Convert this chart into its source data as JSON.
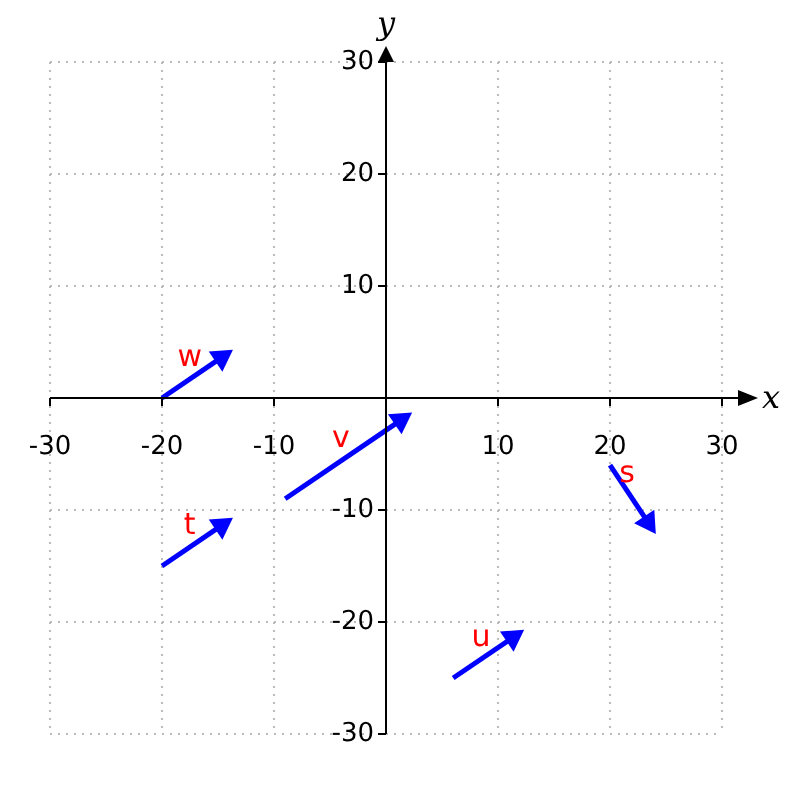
{
  "chart_data": {
    "type": "line",
    "xlabel": "x",
    "ylabel": "y",
    "xlim": [
      -30,
      30
    ],
    "ylim": [
      -30,
      30
    ],
    "xticks": [
      -30,
      -20,
      -10,
      {
        "value": 0,
        "label": null
      },
      10,
      20,
      30
    ],
    "yticks": [
      -30,
      -20,
      -10,
      {
        "value": 0,
        "label": null
      },
      10,
      20,
      30
    ],
    "grid": true,
    "marker": "triangle",
    "line_style": "solid",
    "series": [
      {
        "name": "w",
        "color": "#0000ff",
        "x": [
          -20,
          -14.7
        ],
        "values": [
          0,
          3.6
        ]
      },
      {
        "name": "v",
        "color": "#0000ff",
        "x": [
          -9,
          1.3
        ],
        "values": [
          -9,
          -2
        ]
      },
      {
        "name": "s",
        "color": "#0000ff",
        "x": [
          20,
          23.4
        ],
        "values": [
          -6,
          -11.1
        ]
      },
      {
        "name": "t",
        "color": "#0000ff",
        "x": [
          -20,
          -14.7
        ],
        "values": [
          -15,
          -11.4
        ]
      },
      {
        "name": "u",
        "color": "#0000ff",
        "x": [
          6,
          11.3
        ],
        "values": [
          -25,
          -21.4
        ]
      }
    ]
  }
}
